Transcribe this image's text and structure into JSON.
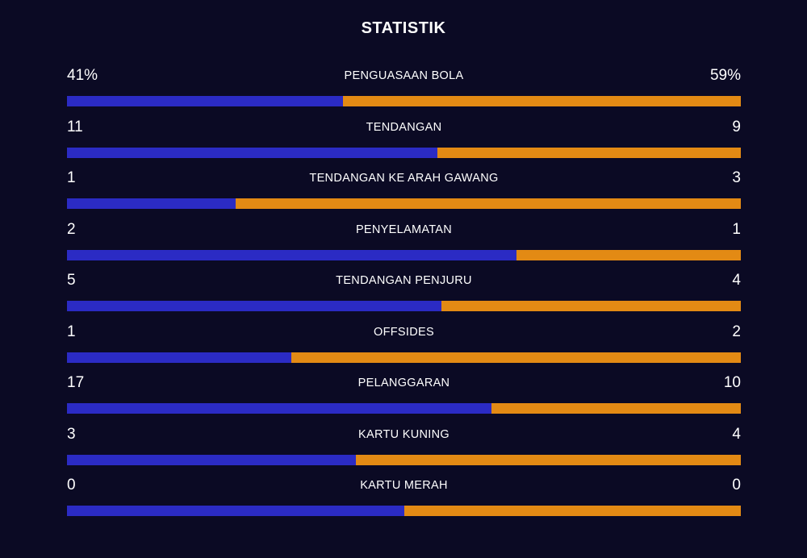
{
  "title": "STATISTIK",
  "colors": {
    "home": "#2b2bc4",
    "away": "#e38a14",
    "background": "#0b0a24"
  },
  "stats": [
    {
      "label": "PENGUASAAN BOLA",
      "home": "41%",
      "away": "59%",
      "home_share": 0.41
    },
    {
      "label": "TENDANGAN",
      "home": "11",
      "away": "9",
      "home_share": 0.55
    },
    {
      "label": "TENDANGAN KE ARAH GAWANG",
      "home": "1",
      "away": "3",
      "home_share": 0.25
    },
    {
      "label": "PENYELAMATAN",
      "home": "2",
      "away": "1",
      "home_share": 0.6667
    },
    {
      "label": "TENDANGAN PENJURU",
      "home": "5",
      "away": "4",
      "home_share": 0.5556
    },
    {
      "label": "OFFSIDES",
      "home": "1",
      "away": "2",
      "home_share": 0.3333
    },
    {
      "label": "PELANGGARAN",
      "home": "17",
      "away": "10",
      "home_share": 0.6296
    },
    {
      "label": "KARTU KUNING",
      "home": "3",
      "away": "4",
      "home_share": 0.4286
    },
    {
      "label": "KARTU MERAH",
      "home": "0",
      "away": "0",
      "home_share": 0.5
    }
  ]
}
